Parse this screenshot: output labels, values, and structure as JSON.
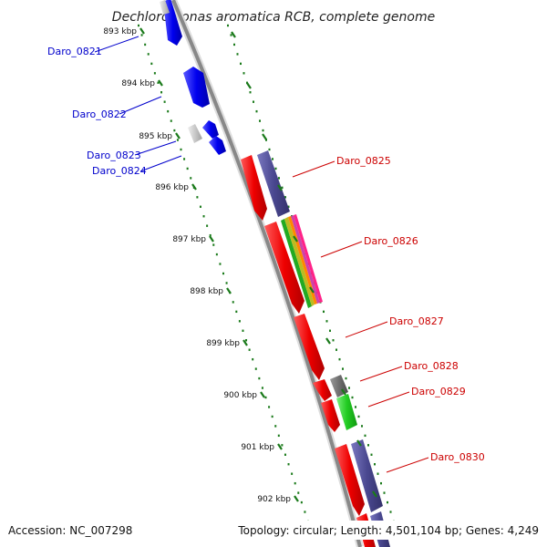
{
  "title": "Dechloromonas aromatica RCB, complete genome",
  "accession": "Accession: NC_007298",
  "summary": "Topology: circular; Length: 4,501,104 bp; Genes: 4,249",
  "colors": {
    "backbone": "#888888",
    "tick": "#1a7a1a",
    "left_label": "#0000cc",
    "right_label": "#cc0000"
  },
  "ticks": [
    {
      "label": "893 kbp"
    },
    {
      "label": "894 kbp"
    },
    {
      "label": "895 kbp"
    },
    {
      "label": "896 kbp"
    },
    {
      "label": "897 kbp"
    },
    {
      "label": "898 kbp"
    },
    {
      "label": "899 kbp"
    },
    {
      "label": "900 kbp"
    },
    {
      "label": "901 kbp"
    },
    {
      "label": "902 kbp"
    }
  ],
  "genes_left": [
    {
      "label": "Daro_0821",
      "color": "#0000e0"
    },
    {
      "label": "Daro_0822",
      "color": "#0000e0"
    },
    {
      "label": "Daro_0823",
      "color": "#0000e0"
    },
    {
      "label": "Daro_0824",
      "color": "#0000e0"
    }
  ],
  "genes_right": [
    {
      "label": "Daro_0825",
      "color": "#e00000"
    },
    {
      "label": "Daro_0826",
      "color": "#e00000"
    },
    {
      "label": "Daro_0827",
      "color": "#e00000"
    },
    {
      "label": "Daro_0828",
      "color": "#e00000"
    },
    {
      "label": "Daro_0829",
      "color": "#e00000"
    },
    {
      "label": "Daro_0830",
      "color": "#e00000"
    }
  ]
}
